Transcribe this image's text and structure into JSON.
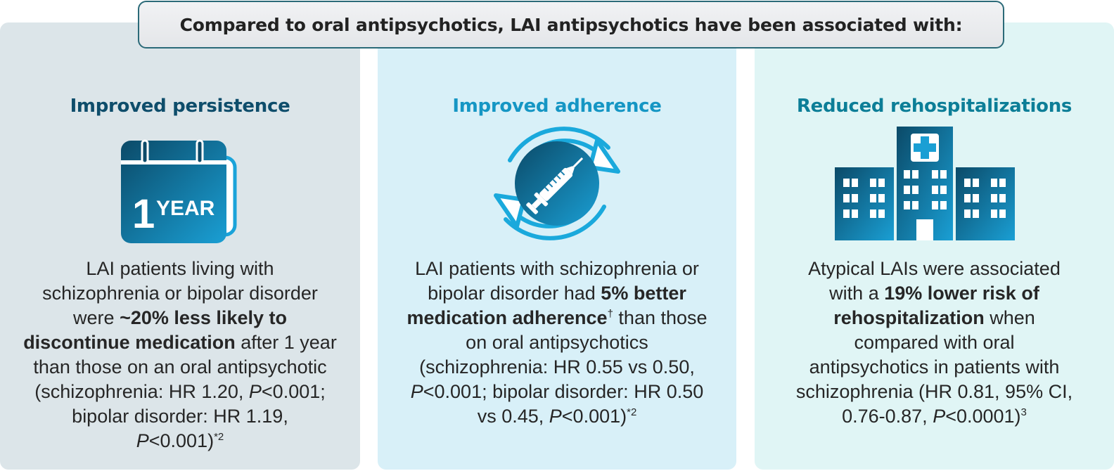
{
  "banner": {
    "text": "Compared to oral antipsychotics, LAI antipsychotics have been associated with:"
  },
  "colors": {
    "panel_1_bg": "#dce5e9",
    "panel_2_bg": "#d8f0f8",
    "panel_3_bg": "#e0f5f5",
    "navy": "#0e4d6b",
    "cyan": "#1596c4",
    "teal": "#0c7e97"
  },
  "panels": [
    {
      "title": "Improved persistence",
      "icon": "calendar-icon",
      "icon_text": {
        "number": "1",
        "unit": "YEAR"
      },
      "body": {
        "line_1": "LAI patients living with",
        "line_2": "schizophrenia or bipolar disorder",
        "line_3_pre": "were ",
        "line_3_bold": "~20% less likely to",
        "line_4_bold": "discontinue medication",
        "line_4_post": " after 1 year",
        "line_5": "than those on an oral antipsychotic",
        "line_6_pre": "(schizophrenia: HR 1.20, ",
        "p_label": "P",
        "line_6_post": "<0.001;",
        "line_7": "bipolar disorder: HR 1.19,",
        "line_8_post": "<0.001)",
        "footnote": "*2"
      }
    },
    {
      "title": "Improved adherence",
      "icon": "syringe-cycle-icon",
      "body": {
        "line_1": "LAI patients with schizophrenia or",
        "line_2_pre": "bipolar disorder had ",
        "line_2_bold": "5% better",
        "line_3_bold": "medication adherence",
        "dagger": "†",
        "line_3_post": " than those",
        "line_4": "on oral antipsychotics",
        "line_5": "(schizophrenia: HR 0.55 vs 0.50,",
        "p_label": "P",
        "line_6_post": "<0.001; bipolar disorder: HR 0.50",
        "line_7_pre": "vs 0.45, ",
        "line_7_post": "<0.001)",
        "footnote": "*2"
      }
    },
    {
      "title": "Reduced rehospitalizations",
      "icon": "hospital-icon",
      "body": {
        "line_1": "Atypical LAIs were associated",
        "line_2_pre": "with a ",
        "line_2_bold": "19% lower risk of",
        "line_3_bold": "rehospitalization",
        "line_3_post": " when",
        "line_4": "compared with oral",
        "line_5": "antipsychotics in patients with",
        "line_6": "schizophrenia (HR 0.81, 95% CI,",
        "line_7_pre": "0.76-0.87, ",
        "p_label": "P",
        "line_7_post": "<0.0001)",
        "footnote": "3"
      }
    }
  ]
}
